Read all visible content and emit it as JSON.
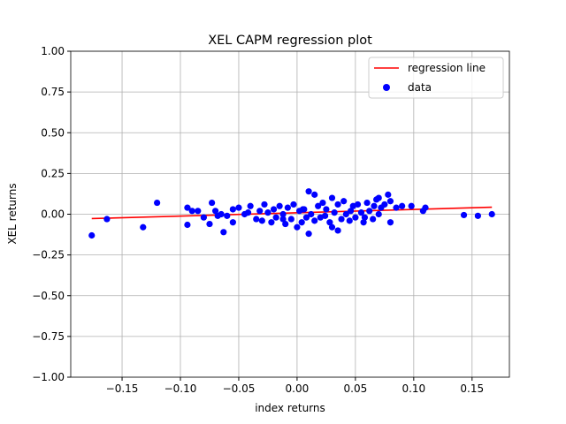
{
  "chart_data": {
    "type": "scatter",
    "title": "XEL CAPM regression plot",
    "x_label": "index returns",
    "y_label": "XEL returns",
    "xlim": [
      -0.194,
      0.182
    ],
    "ylim": [
      -1.0,
      1.0
    ],
    "grid": true,
    "legend": "upper right",
    "xticks": [
      {
        "value": -0.15,
        "label": "−0.15"
      },
      {
        "value": -0.1,
        "label": "−0.10"
      },
      {
        "value": -0.05,
        "label": "−0.05"
      },
      {
        "value": 0,
        "label": "0.00"
      },
      {
        "value": 0.05,
        "label": "0.05"
      },
      {
        "value": 0.1,
        "label": "0.10"
      },
      {
        "value": 0.15,
        "label": "0.15"
      }
    ],
    "yticks": [
      {
        "value": -1.0,
        "label": "−1.00"
      },
      {
        "value": -0.75,
        "label": "−0.75"
      },
      {
        "value": -0.5,
        "label": "−0.50"
      },
      {
        "value": -0.25,
        "label": "−0.25"
      },
      {
        "value": 0,
        "label": "0.00"
      },
      {
        "value": 0.25,
        "label": "0.25"
      },
      {
        "value": 0.5,
        "label": "0.50"
      },
      {
        "value": 0.75,
        "label": "0.75"
      },
      {
        "value": 1.0,
        "label": "1.00"
      }
    ],
    "series": [
      {
        "name": "regression line",
        "color": "#ff0000",
        "mark": "line",
        "x": [
          -0.176,
          0.167
        ],
        "values": [
          -0.027,
          0.043
        ]
      },
      {
        "name": "data",
        "color": "#0000ff",
        "mark": "point",
        "x": [
          -0.176,
          -0.163,
          -0.132,
          -0.12,
          -0.094,
          -0.094,
          -0.085,
          -0.08,
          -0.075,
          -0.073,
          -0.07,
          -0.065,
          -0.063,
          -0.06,
          -0.055,
          -0.055,
          -0.05,
          -0.045,
          -0.04,
          -0.035,
          -0.032,
          -0.03,
          -0.028,
          -0.025,
          -0.022,
          -0.02,
          -0.018,
          -0.015,
          -0.012,
          -0.01,
          -0.008,
          -0.005,
          -0.003,
          0.0,
          0.002,
          0.004,
          0.006,
          0.008,
          0.01,
          0.01,
          0.012,
          0.015,
          0.015,
          0.018,
          0.02,
          0.022,
          0.025,
          0.028,
          0.03,
          0.03,
          0.032,
          0.035,
          0.035,
          0.038,
          0.04,
          0.042,
          0.045,
          0.048,
          0.05,
          0.052,
          0.055,
          0.057,
          0.06,
          0.062,
          0.065,
          0.068,
          0.07,
          0.07,
          0.072,
          0.075,
          0.078,
          0.08,
          0.08,
          0.085,
          0.09,
          0.098,
          0.108,
          0.11,
          0.143,
          0.155,
          0.167,
          -0.09,
          -0.068,
          -0.042,
          -0.012,
          0.005,
          0.024,
          0.046,
          0.058,
          0.066
        ],
        "values": [
          -0.13,
          -0.03,
          -0.08,
          0.07,
          0.04,
          -0.065,
          0.02,
          -0.02,
          -0.06,
          0.07,
          0.02,
          0.0,
          -0.11,
          -0.01,
          0.03,
          -0.05,
          0.04,
          0.0,
          0.05,
          -0.03,
          0.02,
          -0.04,
          0.06,
          0.01,
          -0.05,
          0.03,
          -0.02,
          0.05,
          0.0,
          -0.06,
          0.04,
          -0.03,
          0.06,
          -0.08,
          0.02,
          -0.05,
          0.03,
          -0.02,
          0.14,
          -0.12,
          0.0,
          0.12,
          -0.04,
          0.05,
          -0.02,
          0.07,
          0.03,
          -0.05,
          0.1,
          -0.08,
          0.01,
          -0.1,
          0.06,
          -0.03,
          0.08,
          0.0,
          -0.04,
          0.05,
          -0.02,
          0.06,
          0.01,
          -0.05,
          0.07,
          0.02,
          -0.03,
          0.09,
          0.1,
          0.0,
          0.04,
          0.06,
          0.12,
          -0.05,
          0.08,
          0.04,
          0.05,
          0.05,
          0.02,
          0.04,
          -0.005,
          -0.01,
          0.0,
          0.02,
          -0.01,
          0.01,
          -0.03,
          0.03,
          -0.01,
          0.02,
          -0.02,
          0.05
        ]
      }
    ]
  }
}
